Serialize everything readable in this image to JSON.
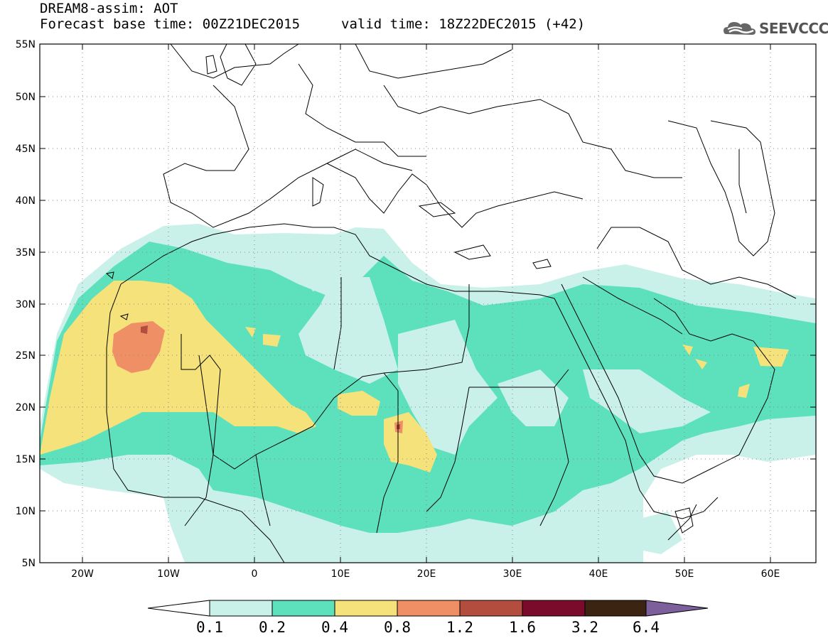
{
  "header": {
    "line1": "DREAM8-assim: AOT",
    "line2": "Forecast base time: 00Z21DEC2015",
    "valid": "valid time: 18Z22DEC2015 (+42)",
    "logo_text": "SEEVCCC"
  },
  "map": {
    "lon_range": [
      -25,
      65
    ],
    "lat_range": [
      5,
      55
    ],
    "lat_labels": [
      "55N",
      "50N",
      "45N",
      "40N",
      "35N",
      "30N",
      "25N",
      "20N",
      "15N",
      "10N",
      "5N"
    ],
    "lon_labels": [
      "20W",
      "10W",
      "0",
      "10E",
      "20E",
      "30E",
      "40E",
      "50E",
      "60E"
    ],
    "grid": true
  },
  "colorbar": {
    "labels": [
      "0.1",
      "0.2",
      "0.4",
      "0.8",
      "1.2",
      "1.6",
      "3.2",
      "6.4"
    ],
    "colors": [
      "#ffffff",
      "#c9f1ea",
      "#5de1bc",
      "#f6e27a",
      "#ee8f66",
      "#b34e3f",
      "#7b0b2a",
      "#3b2411",
      "#7d5f9b"
    ]
  }
}
